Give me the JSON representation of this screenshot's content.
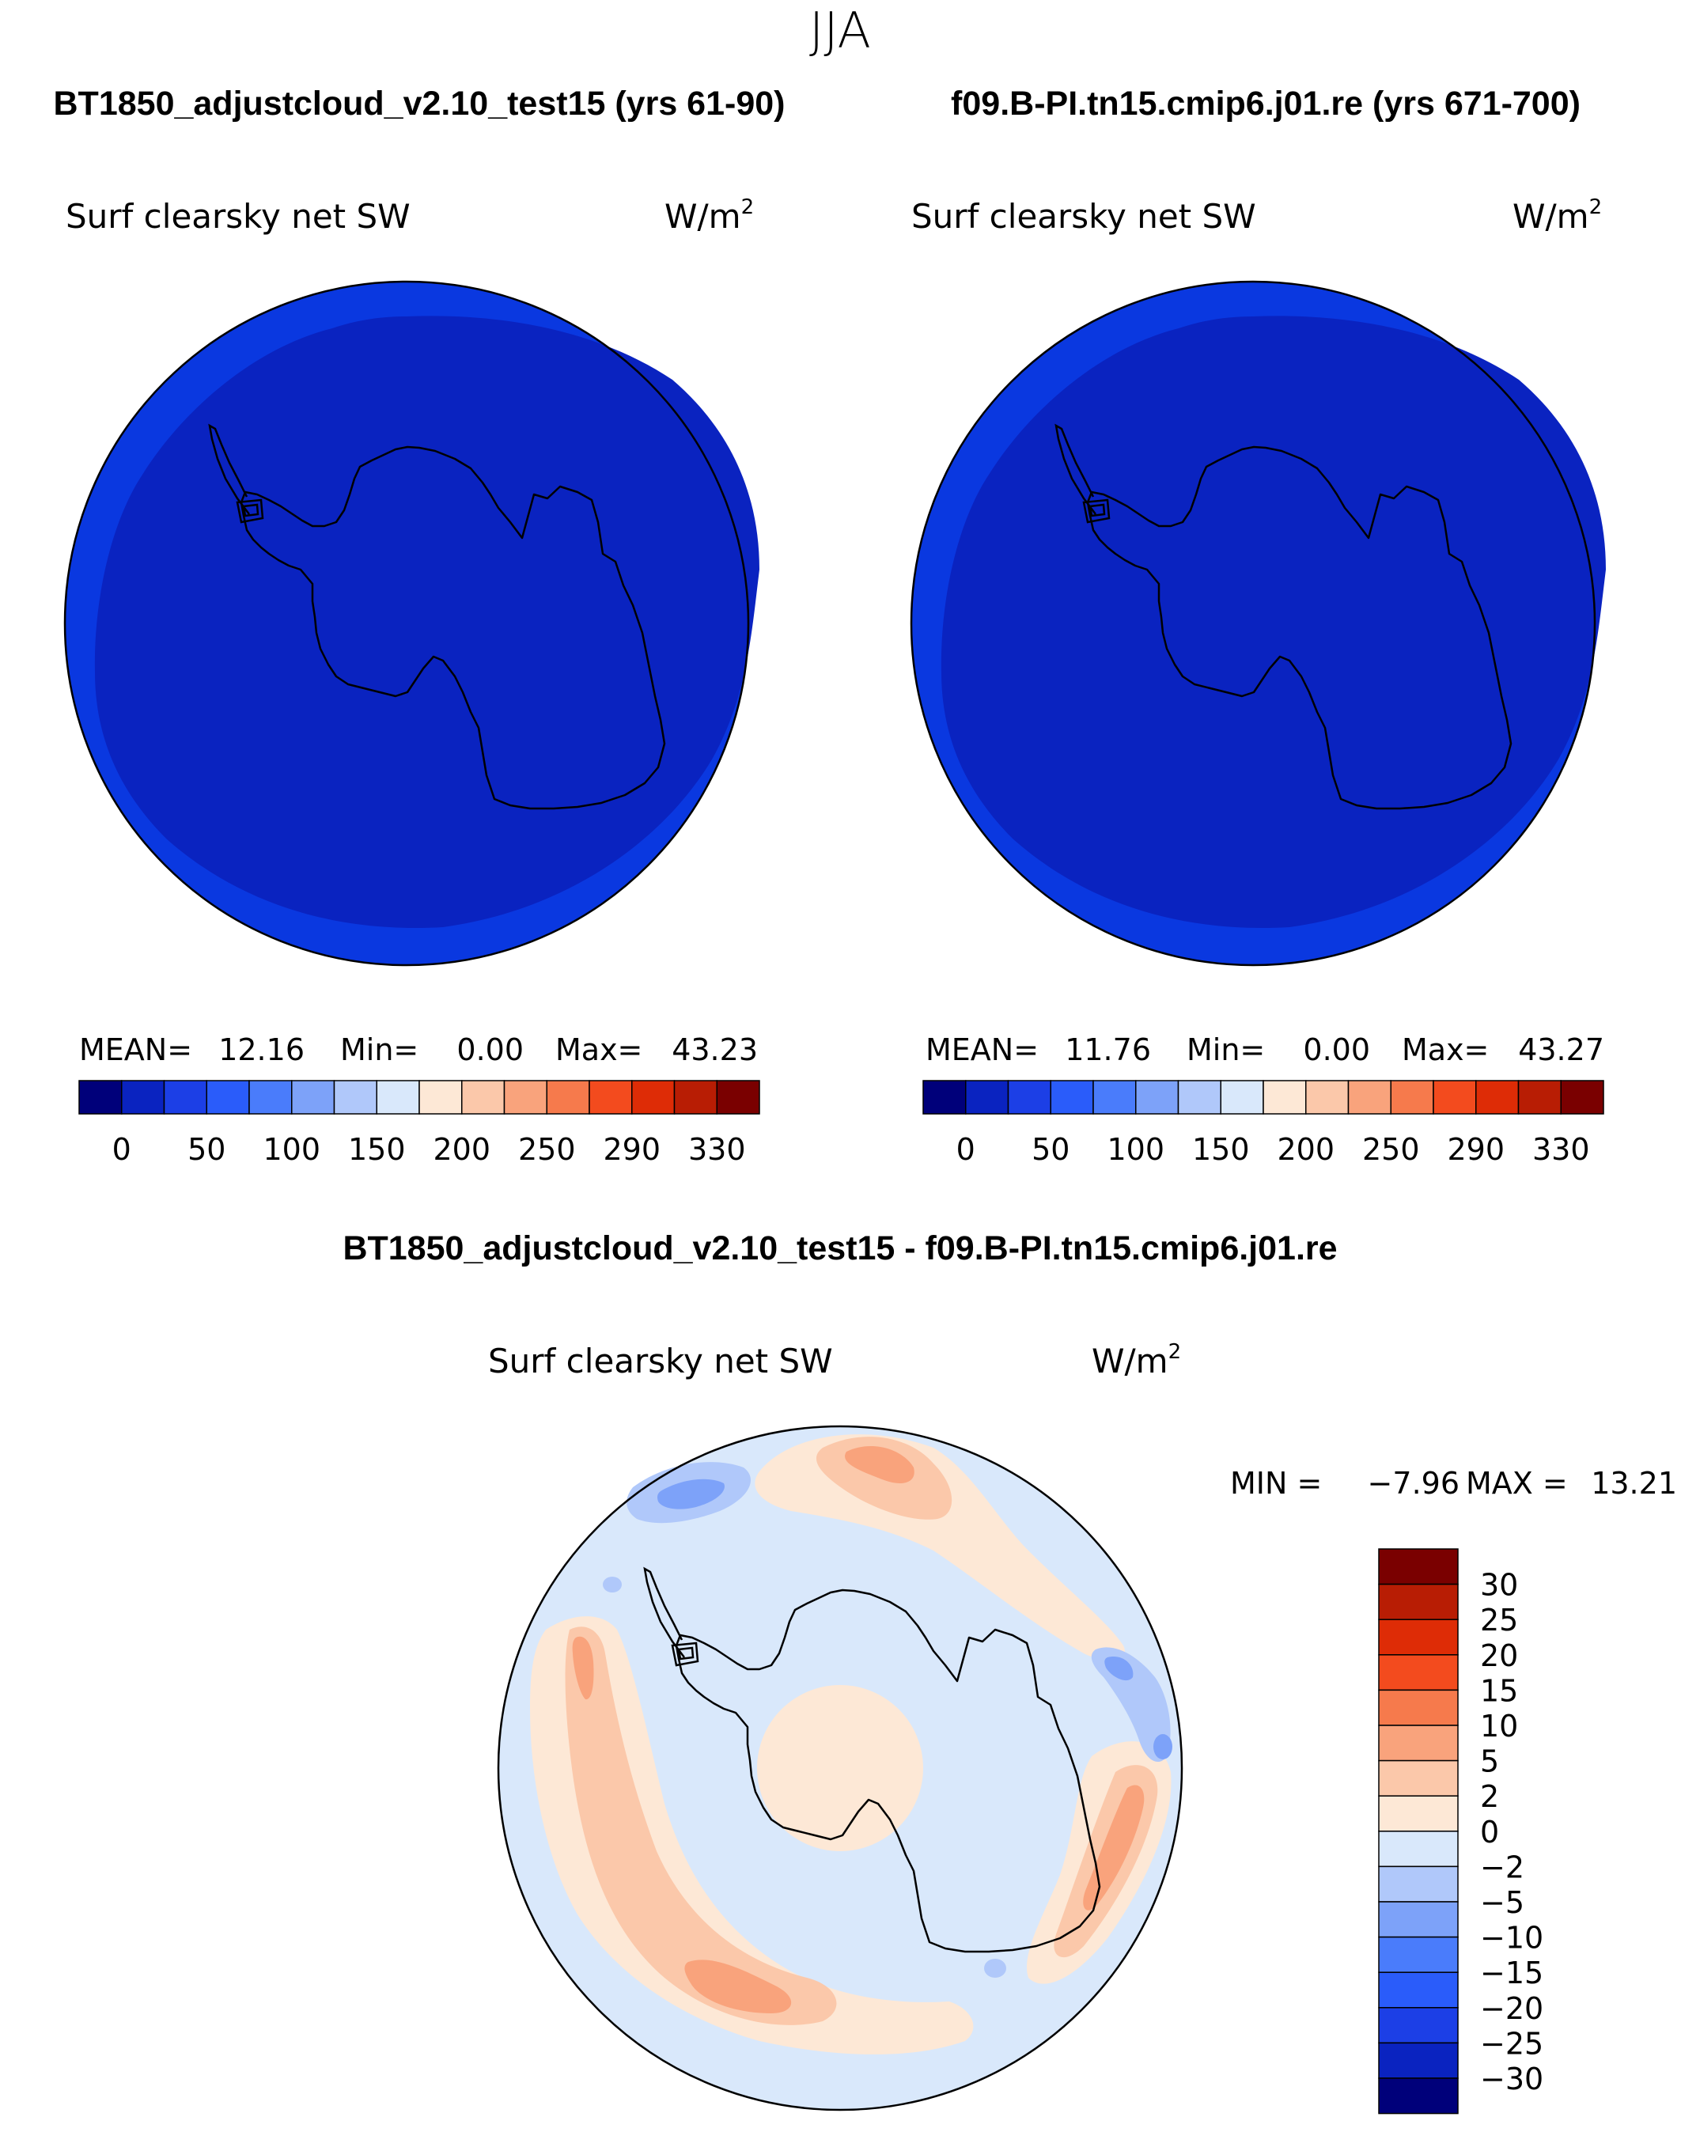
{
  "season": "JJA",
  "panels": [
    {
      "case_title": "BT1850_adjustcloud_v2.10_test15 (yrs 61-90)",
      "variable": "Surf clearsky net SW",
      "units_base": "W/m",
      "units_exp": "2",
      "stats": {
        "mean_label": "MEAN=",
        "mean": "12.16",
        "min_label": "Min=",
        "min": "0.00",
        "max_label": "Max=",
        "max": "43.23"
      }
    },
    {
      "case_title": "f09.B-PI.tn15.cmip6.j01.re (yrs 671-700)",
      "variable": "Surf clearsky net SW",
      "units_base": "W/m",
      "units_exp": "2",
      "stats": {
        "mean_label": "MEAN=",
        "mean": "11.76",
        "min_label": "Min=",
        "min": "0.00",
        "max_label": "Max=",
        "max": "43.27"
      }
    }
  ],
  "top_colorbar": {
    "colors": [
      "#00007a",
      "#0a23c0",
      "#1c3fe6",
      "#2a5cfa",
      "#4a7cfb",
      "#7da2f9",
      "#b0c8fa",
      "#d9e8fb",
      "#fde8d6",
      "#fbc8aa",
      "#f9a37c",
      "#f67a4c",
      "#f34b1e",
      "#de2c06",
      "#b81d04",
      "#7a0000"
    ],
    "tick_labels": [
      "0",
      "50",
      "100",
      "150",
      "200",
      "250",
      "290",
      "330"
    ]
  },
  "diff_panel": {
    "title": "BT1850_adjustcloud_v2.10_test15 - f09.B-PI.tn15.cmip6.j01.re",
    "variable": "Surf clearsky net SW",
    "units_base": "W/m",
    "units_exp": "2",
    "min_label": "MIN =",
    "min": "−7.96",
    "max_label": "MAX =",
    "max": "13.21",
    "colorbar": {
      "colors": [
        "#7a0000",
        "#b81d04",
        "#de2c06",
        "#f34b1e",
        "#f67a4c",
        "#f9a37c",
        "#fbc8aa",
        "#fde8d6",
        "#d9e8fb",
        "#b0c8fa",
        "#7da2f9",
        "#4a7cfb",
        "#2a5cfa",
        "#1c3fe6",
        "#0a23c0",
        "#00007a"
      ],
      "tick_labels": [
        "30",
        "25",
        "20",
        "15",
        "10",
        "5",
        "2",
        "0",
        "−2",
        "−5",
        "−10",
        "−15",
        "−20",
        "−25",
        "−30"
      ]
    }
  },
  "colors": {
    "ocean_outer": "#0a38e0",
    "ocean_inner": "#0a23c0",
    "diff_background": "#d9e8fb",
    "diff_small_pos": "#fde8d6",
    "diff_mid_pos": "#fbc8aa",
    "diff_big_pos": "#f9a37c",
    "diff_max_pos": "#f67a4c",
    "diff_small_neg": "#b0c8fa",
    "diff_mid_neg": "#7da2f9",
    "coast": "#000000"
  }
}
